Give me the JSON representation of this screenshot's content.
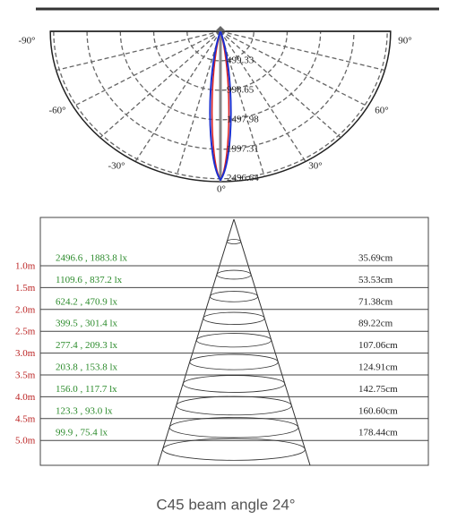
{
  "polar": {
    "angle_labels": [
      "-90°",
      "90°",
      "-60°",
      "60°",
      "-30°",
      "30°",
      "0°"
    ],
    "ring_labels": [
      "499.33",
      "998.65",
      "1497.98",
      "1997.31",
      "2496.64"
    ]
  },
  "table": {
    "rows": [
      {
        "distance": "1.0m",
        "illuminance": "2496.6 , 1883.8 lx",
        "diameter": "35.69cm"
      },
      {
        "distance": "1.5m",
        "illuminance": "1109.6 , 837.2 lx",
        "diameter": "53.53cm"
      },
      {
        "distance": "2.0m",
        "illuminance": "624.2 , 470.9 lx",
        "diameter": "71.38cm"
      },
      {
        "distance": "2.5m",
        "illuminance": "399.5 , 301.4 lx",
        "diameter": "89.22cm"
      },
      {
        "distance": "3.0m",
        "illuminance": "277.4 , 209.3 lx",
        "diameter": "107.06cm"
      },
      {
        "distance": "3.5m",
        "illuminance": "203.8 , 153.8 lx",
        "diameter": "124.91cm"
      },
      {
        "distance": "4.0m",
        "illuminance": "156.0 , 117.7 lx",
        "diameter": "142.75cm"
      },
      {
        "distance": "4.5m",
        "illuminance": "123.3 , 93.0 lx",
        "diameter": "160.60cm"
      },
      {
        "distance": "5.0m",
        "illuminance": "99.9 , 75.4 lx",
        "diameter": "178.44cm"
      }
    ]
  },
  "caption": "C45 beam angle 24°"
}
